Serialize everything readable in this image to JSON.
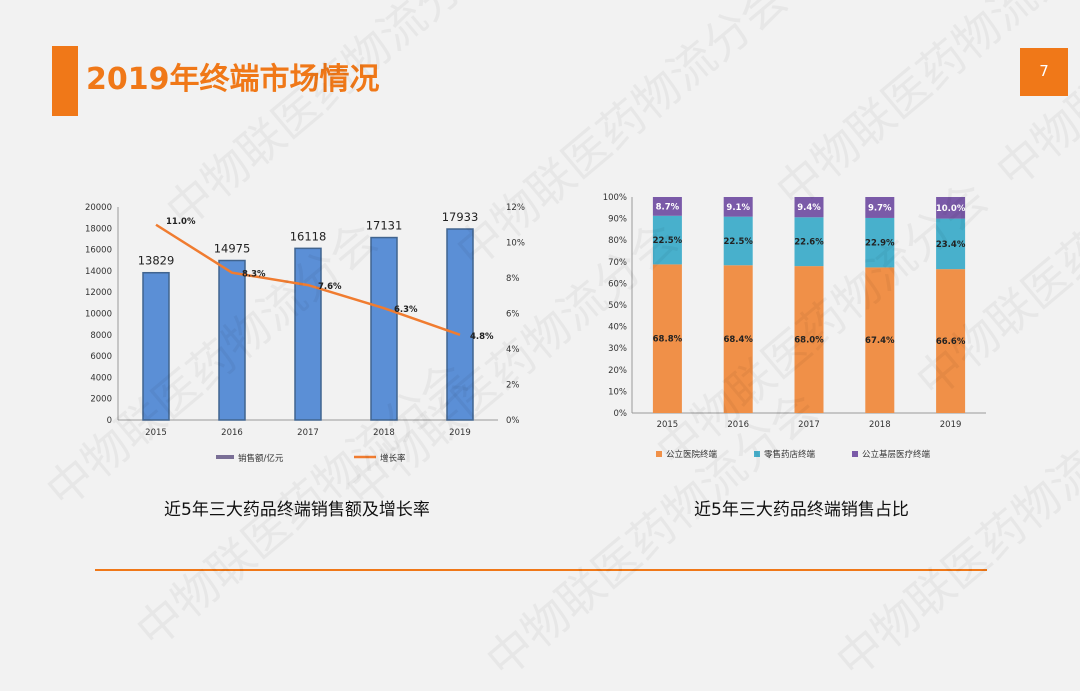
{
  "slide": {
    "title": "2019年终端市场情况",
    "page_number": "7",
    "accent_color": "#f07818",
    "watermark_text": "中物联医药物流分会"
  },
  "captions": {
    "left": "近5年三大药品终端销售额及增长率",
    "right": "近5年三大药品终端销售占比"
  },
  "chart_data": [
    {
      "type": "bar",
      "categories": [
        "2015",
        "2016",
        "2017",
        "2018",
        "2019"
      ],
      "series": [
        {
          "name": "销售额/亿元",
          "type": "bar",
          "axis": "left",
          "color": "#5b8fd6",
          "values": [
            13829,
            14975,
            16118,
            17131,
            17933
          ]
        },
        {
          "name": "增长率",
          "type": "line",
          "axis": "right",
          "color": "#f07c30",
          "values": [
            11.0,
            8.3,
            7.6,
            6.3,
            4.8
          ]
        }
      ],
      "data_labels_bar": [
        "13829",
        "14975",
        "16118",
        "17131",
        "17933"
      ],
      "data_labels_line": [
        "11.0%",
        "8.3%",
        "7.6%",
        "6.3%",
        "4.8%"
      ],
      "ylim_left": [
        0,
        20000
      ],
      "yticks_left": [
        "0",
        "2000",
        "4000",
        "6000",
        "8000",
        "10000",
        "12000",
        "14000",
        "16000",
        "18000",
        "20000"
      ],
      "ylim_right": [
        0,
        12
      ],
      "yticks_right": [
        "0%",
        "2%",
        "4%",
        "6%",
        "8%",
        "10%",
        "12%"
      ],
      "legend_position": "bottom",
      "grid": false
    },
    {
      "type": "bar",
      "stacked": true,
      "categories": [
        "2015",
        "2016",
        "2017",
        "2018",
        "2019"
      ],
      "series": [
        {
          "name": "公立医院终端",
          "color": "#f09048",
          "values": [
            68.8,
            68.4,
            68.0,
            67.4,
            66.6
          ],
          "labels": [
            "68.8%",
            "68.4%",
            "68.0%",
            "67.4%",
            "66.6%"
          ]
        },
        {
          "name": "零售药店终端",
          "color": "#48b0cc",
          "values": [
            22.5,
            22.5,
            22.6,
            22.9,
            23.4
          ],
          "labels": [
            "22.5%",
            "22.5%",
            "22.6%",
            "22.9%",
            "23.4%"
          ]
        },
        {
          "name": "公立基层医疗终端",
          "color": "#7a5aa8",
          "values": [
            8.7,
            9.1,
            9.4,
            9.7,
            10.0
          ],
          "labels": [
            "8.7%",
            "9.1%",
            "9.4%",
            "9.7%",
            "10.0%"
          ]
        }
      ],
      "ylim": [
        0,
        100
      ],
      "yticks": [
        "0%",
        "10%",
        "20%",
        "30%",
        "40%",
        "50%",
        "60%",
        "70%",
        "80%",
        "90%",
        "100%"
      ],
      "legend_position": "bottom",
      "grid": false
    }
  ]
}
